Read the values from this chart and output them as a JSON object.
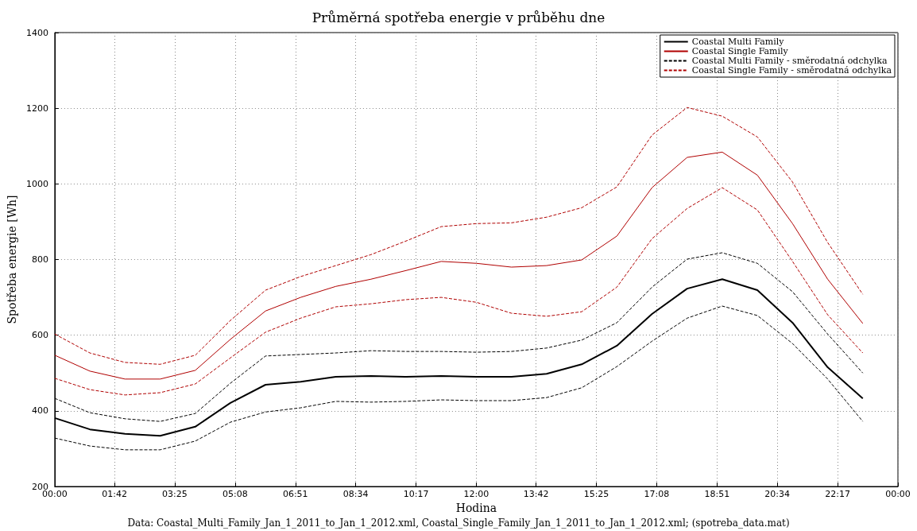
{
  "chart_data": {
    "type": "line",
    "title": "Průměrná spotřeba energie v průběhu dne",
    "xlabel": "Hodina",
    "ylabel": "Spotřeba energie [Wh]",
    "annotations": [
      "Data: Coastal_Multi_Family_Jan_1_2011_to_Jan_1_2012.xml, Coastal_Single_Family_Jan_1_2011_to_Jan_1_2012.xml; (spotreba_data.mat)"
    ],
    "x": [
      0,
      1,
      2,
      3,
      4,
      5,
      6,
      7,
      8,
      9,
      10,
      11,
      12,
      13,
      14,
      15,
      16,
      17,
      18,
      19,
      20,
      21,
      22,
      23
    ],
    "series": [
      {
        "name": "Coastal Multi Family",
        "color": "#000000",
        "line_style": "solid",
        "values": [
          381,
          351,
          339,
          334,
          358,
          421,
          469,
          477,
          490,
          492,
          490,
          492,
          490,
          490,
          498,
          523,
          572,
          656,
          723,
          748,
          719,
          633,
          515,
          433
        ]
      },
      {
        "name": "Coastal Single Family",
        "color": "#b00000",
        "line_style": "solid",
        "values": [
          547,
          505,
          484,
          484,
          507,
          589,
          664,
          700,
          729,
          748,
          771,
          795,
          790,
          780,
          784,
          799,
          862,
          990,
          1070,
          1084,
          1023,
          895,
          748,
          631
        ]
      },
      {
        "name": "Coastal Multi Family - směrodatná odchylka",
        "color": "#000000",
        "line_style": "dashed",
        "values": [
          433,
          395,
          379,
          372,
          393,
          473,
          545,
          549,
          553,
          559,
          557,
          557,
          555,
          557,
          566,
          587,
          633,
          727,
          801,
          818,
          790,
          715,
          603,
          500
        ]
      },
      {
        "name": "Coastal Single Family - směrodatná odchylka",
        "color": "#b00000",
        "line_style": "dashed",
        "values": [
          603,
          553,
          528,
          523,
          547,
          639,
          719,
          755,
          784,
          813,
          849,
          887,
          895,
          897,
          912,
          937,
          992,
          1129,
          1202,
          1179,
          1124,
          1005,
          845,
          708
        ]
      },
      {
        "color": "#000000",
        "line_style": "dashed",
        "values": [
          328,
          307,
          297,
          297,
          320,
          370,
          397,
          408,
          425,
          423,
          425,
          429,
          427,
          427,
          435,
          461,
          517,
          584,
          645,
          677,
          652,
          578,
          484,
          372
        ]
      },
      {
        "color": "#b00000",
        "line_style": "dashed",
        "values": [
          486,
          456,
          442,
          448,
          471,
          540,
          608,
          645,
          675,
          683,
          694,
          700,
          687,
          658,
          650,
          662,
          727,
          855,
          935,
          990,
          931,
          795,
          654,
          553
        ]
      }
    ],
    "xlim": [
      0,
      24
    ],
    "xticks": [
      {
        "value": 0,
        "label": "00:00"
      },
      {
        "value": 1.7,
        "label": "01:42"
      },
      {
        "value": 3.4167,
        "label": "03:25"
      },
      {
        "value": 5.1333,
        "label": "05:08"
      },
      {
        "value": 6.85,
        "label": "06:51"
      },
      {
        "value": 8.5667,
        "label": "08:34"
      },
      {
        "value": 10.2833,
        "label": "10:17"
      },
      {
        "value": 12,
        "label": "12:00"
      },
      {
        "value": 13.7,
        "label": "13:42"
      },
      {
        "value": 15.4167,
        "label": "15:25"
      },
      {
        "value": 17.1333,
        "label": "17:08"
      },
      {
        "value": 18.85,
        "label": "18:51"
      },
      {
        "value": 20.5667,
        "label": "20:34"
      },
      {
        "value": 22.2833,
        "label": "22:17"
      },
      {
        "value": 24,
        "label": "00:00"
      }
    ],
    "ylim": [
      200,
      1400
    ],
    "yticks": [
      200,
      400,
      600,
      800,
      1000,
      1200,
      1400
    ],
    "grid": true,
    "legend": "top right",
    "marker": "none"
  }
}
